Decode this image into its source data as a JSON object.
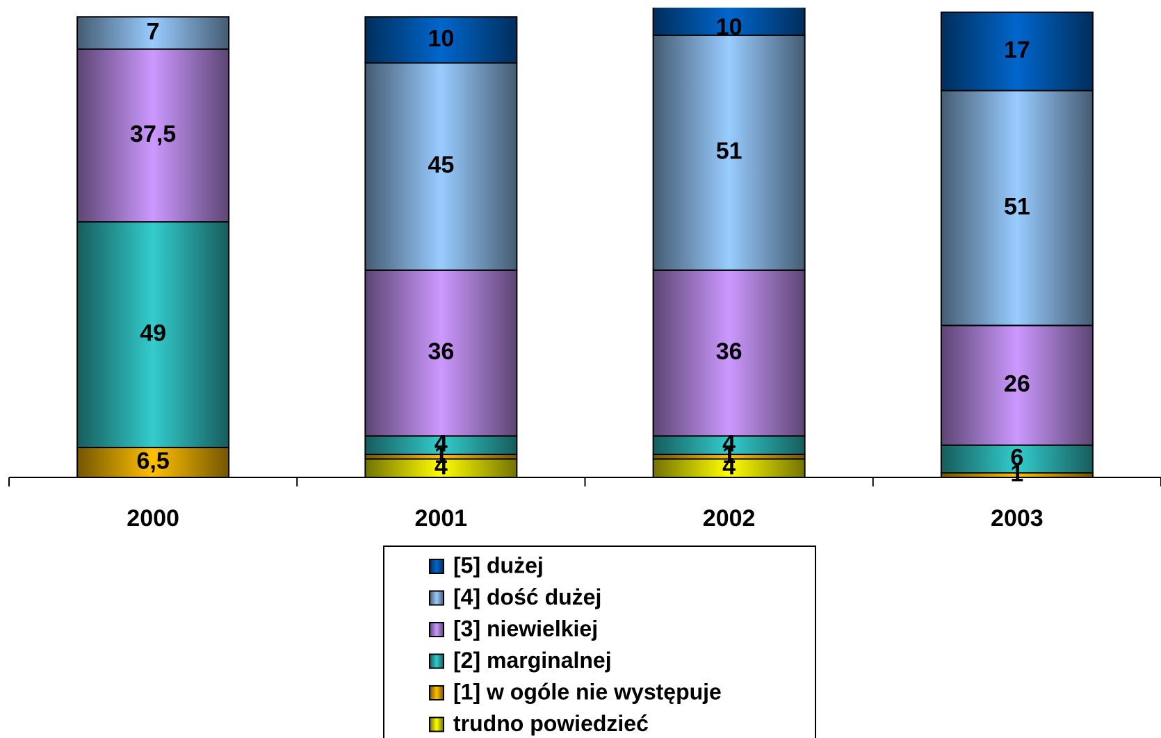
{
  "chart_data": {
    "type": "stacked_bar",
    "categories": [
      "2000",
      "2001",
      "2002",
      "2003"
    ],
    "ylim": [
      0,
      102
    ],
    "legend": "bottom",
    "series": [
      {
        "name": "trudno powiedzieć",
        "color": "#ffff00",
        "values": [
          null,
          4,
          4,
          null
        ],
        "value_labels": [
          null,
          "4",
          "4",
          null
        ]
      },
      {
        "name": "[1] w ogóle nie występuje",
        "color": "#ffc000",
        "values": [
          6.5,
          1,
          1,
          1
        ],
        "value_labels": [
          "6,5",
          "1",
          "1",
          "1"
        ]
      },
      {
        "name": "[2] marginalnej",
        "color": "#33cccc",
        "values": [
          49,
          4,
          4,
          6
        ],
        "value_labels": [
          "49",
          "4",
          "4",
          "6"
        ]
      },
      {
        "name": "[3] niewielkiej",
        "color": "#cc99ff",
        "values": [
          37.5,
          36,
          36,
          26
        ],
        "value_labels": [
          "37,5",
          "36",
          "36",
          "26"
        ]
      },
      {
        "name": "[4] dość dużej",
        "color": "#99ccff",
        "values": [
          7,
          45,
          51,
          51
        ],
        "value_labels": [
          "7",
          "45",
          "51",
          "51"
        ]
      },
      {
        "name": "[5] dużej",
        "color": "#0066cc",
        "values": [
          null,
          10,
          10,
          17
        ],
        "value_labels": [
          null,
          "10",
          "10",
          "17"
        ]
      }
    ]
  }
}
